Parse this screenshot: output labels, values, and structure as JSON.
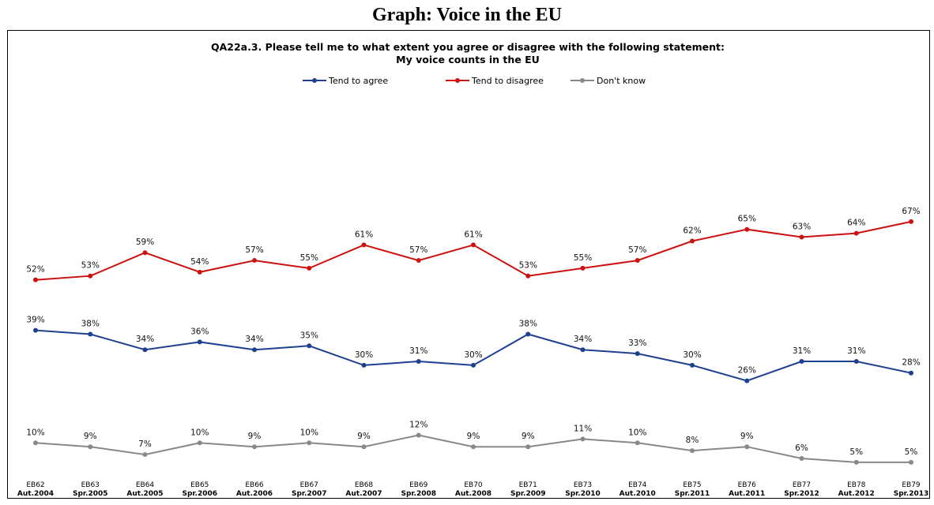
{
  "page_title": "Graph: Voice in the EU",
  "chart_data": {
    "type": "line",
    "title": "QA22a.3. Please tell me to what extent you agree or disagree with the following statement:",
    "subtitle": "My voice counts in the EU",
    "legend_placement": "top-center",
    "grid": false,
    "ylim": [
      0,
      100
    ],
    "categories": [
      {
        "wave": "EB62",
        "period": "Aut.2004"
      },
      {
        "wave": "EB63",
        "period": "Spr.2005"
      },
      {
        "wave": "EB64",
        "period": "Aut.2005"
      },
      {
        "wave": "EB65",
        "period": "Spr.2006"
      },
      {
        "wave": "EB66",
        "period": "Aut.2006"
      },
      {
        "wave": "EB67",
        "period": "Spr.2007"
      },
      {
        "wave": "EB68",
        "period": "Aut.2007"
      },
      {
        "wave": "EB69",
        "period": "Spr.2008"
      },
      {
        "wave": "EB70",
        "period": "Aut.2008"
      },
      {
        "wave": "EB71",
        "period": "Spr.2009"
      },
      {
        "wave": "EB73",
        "period": "Spr.2010"
      },
      {
        "wave": "EB74",
        "period": "Aut.2010"
      },
      {
        "wave": "EB75",
        "period": "Spr.2011"
      },
      {
        "wave": "EB76",
        "period": "Aut.2011"
      },
      {
        "wave": "EB77",
        "period": "Spr.2012"
      },
      {
        "wave": "EB78",
        "period": "Aut.2012"
      },
      {
        "wave": "EB79",
        "period": "Spr.2013"
      }
    ],
    "series": [
      {
        "name": "Tend to agree",
        "color": "#1f3f8f",
        "values": [
          39,
          38,
          34,
          36,
          34,
          35,
          30,
          31,
          30,
          38,
          34,
          33,
          30,
          26,
          31,
          31,
          28
        ]
      },
      {
        "name": "Tend to disagree",
        "color": "#cc1111",
        "values": [
          52,
          53,
          59,
          54,
          57,
          55,
          61,
          57,
          61,
          53,
          55,
          57,
          62,
          65,
          63,
          64,
          67
        ]
      },
      {
        "name": "Don't know",
        "color": "#888888",
        "values": [
          10,
          9,
          7,
          10,
          9,
          10,
          9,
          12,
          9,
          9,
          11,
          10,
          8,
          9,
          6,
          5,
          5
        ]
      }
    ],
    "value_suffix": "%"
  }
}
